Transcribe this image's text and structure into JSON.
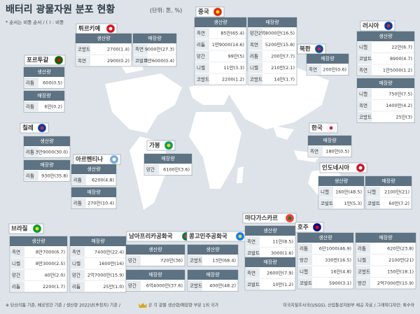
{
  "header": {
    "title": "배터리 광물자원 분포 현황",
    "subtitle": "(단위: 톤, %)",
    "note": "* 순서는 비중 순서 / (  ) : 비중"
  },
  "countries": [
    {
      "name": "중국",
      "sections": [
        {
          "label": "생산량",
          "rows": [
            [
              "흑연",
              "85만(65.4)"
            ],
            [
              "리튬",
              "1만9000(14.6)"
            ],
            [
              "망간",
              "99만(5)"
            ],
            [
              "니켈",
              "11만(3.3)"
            ],
            [
              "코발트",
              "2200(1.2)"
            ]
          ]
        },
        {
          "label": "매장량",
          "rows": [
            [
              "망간",
              "2억8000만(16.5)"
            ],
            [
              "흑연",
              "5200만(15.8)"
            ],
            [
              "리튬",
              "200만(7.7)"
            ],
            [
              "니켈",
              "210만(2.1)"
            ],
            [
              "코발트",
              "14만(1.7)"
            ]
          ]
        }
      ]
    },
    {
      "name": "튀르키예",
      "sections": [
        {
          "label": "생산량",
          "rows": [
            [
              "코발트",
              "2700(1.4)"
            ],
            [
              "흑연",
              "2900(0.2)"
            ]
          ]
        },
        {
          "label": "매장량",
          "rows": [
            [
              "흑연",
              "9000만(27.3)"
            ],
            [
              "코발트",
              "3만6000(0.4)"
            ]
          ]
        }
      ]
    },
    {
      "name": "포르투갈",
      "sections": [
        {
          "label": "생산량",
          "rows": [
            [
              "리튬",
              "600(0.5)"
            ]
          ]
        },
        {
          "label": "매장량",
          "rows": [
            [
              "리튬",
              "6만(0.2)"
            ]
          ]
        }
      ]
    },
    {
      "name": "러시아",
      "sections": [
        {
          "label": "생산량",
          "rows": [
            [
              "니켈",
              "22만(6.7)"
            ],
            [
              "코발트",
              "8900(4.7)"
            ],
            [
              "흑연",
              "1만5000(1.2)"
            ]
          ]
        },
        {
          "label": "매장량",
          "rows": [
            [
              "니켈",
              "750만(7.5)"
            ],
            [
              "흑연",
              "1400만(4.2)"
            ],
            [
              "코발트",
              "25만(3)"
            ]
          ]
        }
      ]
    },
    {
      "name": "북한",
      "sections": [
        {
          "label": "매장량",
          "rows": [
            [
              "흑연",
              "200만(0.6)"
            ]
          ]
        }
      ]
    },
    {
      "name": "한국",
      "sections": [
        {
          "label": "매장량",
          "rows": [
            [
              "흑연",
              "180만(0.5)"
            ]
          ]
        }
      ]
    },
    {
      "name": "칠레",
      "sections": [
        {
          "label": "생산량",
          "rows": [
            [
              "리튬",
              "3만9000(30.0)"
            ]
          ]
        },
        {
          "label": "매장량",
          "rows": [
            [
              "리튬",
              "930만(35.8)"
            ]
          ]
        }
      ]
    },
    {
      "name": "아르헨티나",
      "sections": [
        {
          "label": "생산량",
          "rows": [
            [
              "리튬",
              "6200(4.8)"
            ]
          ]
        },
        {
          "label": "매장량",
          "rows": [
            [
              "리튬",
              "270만(10.4)"
            ]
          ]
        }
      ]
    },
    {
      "name": "가봉",
      "sections": [
        {
          "label": "매장량",
          "rows": [
            [
              "망간",
              "6100만(3.6)"
            ]
          ]
        }
      ]
    },
    {
      "name": "인도네시아",
      "sections": [
        {
          "label": "생산량",
          "rows": [
            [
              "니켈",
              "160만(48.5)"
            ],
            [
              "코발트",
              "1만(5.3)"
            ]
          ]
        },
        {
          "label": "매장량",
          "rows": [
            [
              "니켈",
              "2100만(21)"
            ],
            [
              "코발트",
              "60만(7.2)"
            ]
          ]
        }
      ]
    },
    {
      "name": "브라질",
      "sections": [
        {
          "label": "생산량",
          "rows": [
            [
              "흑연",
              "8만7000(6.7)"
            ],
            [
              "니켈",
              "8만3000(2.5)"
            ],
            [
              "망간",
              "40만(2.0)"
            ],
            [
              "리튬",
              "2200(1.7)"
            ]
          ]
        },
        {
          "label": "매장량",
          "rows": [
            [
              "흑연",
              "7400만(22.4)"
            ],
            [
              "니켈",
              "1600만(16)"
            ],
            [
              "망간",
              "2억7000만(15.9)"
            ],
            [
              "리튬",
              "25만(1.0)"
            ]
          ]
        }
      ]
    },
    {
      "name": "남아프리카공화국",
      "sections": [
        {
          "label": "생산량",
          "rows": [
            [
              "망간",
              "720만(36)"
            ]
          ]
        },
        {
          "label": "매장량",
          "rows": [
            [
              "망간",
              "6억4000만(37.6)"
            ]
          ]
        }
      ]
    },
    {
      "name": "콩고민주공화국",
      "sections": [
        {
          "label": "생산량",
          "rows": [
            [
              "코발트",
              "13만(68.4)"
            ]
          ]
        },
        {
          "label": "매장량",
          "rows": [
            [
              "코발트",
              "400만(48.2)"
            ]
          ]
        }
      ]
    },
    {
      "name": "마다가스카르",
      "sections": [
        {
          "label": "생산량",
          "rows": [
            [
              "흑연",
              "11만(8.5)"
            ],
            [
              "코발트",
              "3000(1.6)"
            ]
          ]
        },
        {
          "label": "매장량",
          "rows": [
            [
              "흑연",
              "2600만(7.9)"
            ],
            [
              "코발트",
              "10만(1.2)"
            ]
          ]
        }
      ]
    },
    {
      "name": "호주",
      "sections": [
        {
          "label": "생산량",
          "rows": [
            [
              "리튬",
              "6만1000(46.9)"
            ],
            [
              "망간",
              "330만(16.5)"
            ],
            [
              "니켈",
              "16만(4.8)"
            ],
            [
              "코발트",
              "5900(3.1)"
            ]
          ]
        },
        {
          "label": "매장량",
          "rows": [
            [
              "리튬",
              "620만(23.8)"
            ],
            [
              "니켈",
              "2100만(21)"
            ],
            [
              "코발트",
              "150만(18.1)"
            ],
            [
              "망간",
              "2억7000만(15.9)"
            ]
          ]
        }
      ]
    }
  ],
  "footer": {
    "left": "※ 탄산리튬 기준, 페로망간 기준 / 생산량 2022년(추정치) 기준 / ",
    "left2": "은 각 광물 생산량/매장량 부문 1위 국가",
    "right": "미국지질조사국(USGS), 산업통상자원부 제공 자료 / 그래픽디자인: 최수아"
  }
}
